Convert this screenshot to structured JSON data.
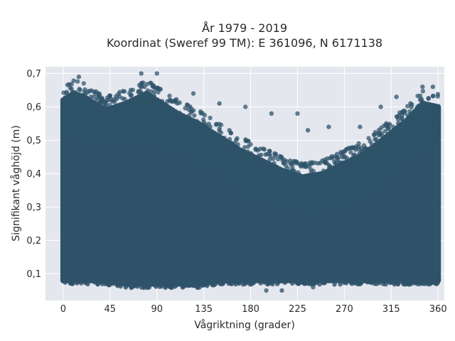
{
  "chart_data": {
    "type": "scatter",
    "title": "År 1979 - 2019",
    "subtitle": "Koordinat (Sweref 99 TM): E 361096, N 6171138",
    "xlabel": "Vågriktning (grader)",
    "ylabel": "Signifikant våghöjd (m)",
    "xlim": [
      -17,
      366
    ],
    "ylim": [
      0.02,
      0.72
    ],
    "x_ticks": [
      0,
      45,
      90,
      135,
      180,
      225,
      270,
      315,
      360
    ],
    "x_tick_labels": [
      "0",
      "45",
      "90",
      "135",
      "180",
      "225",
      "270",
      "315",
      "360"
    ],
    "y_ticks": [
      0.1,
      0.2,
      0.3,
      0.4,
      0.5,
      0.6,
      0.7
    ],
    "y_tick_labels": [
      "0,1",
      "0,2",
      "0,3",
      "0,4",
      "0,5",
      "0,6",
      "0,7"
    ],
    "grid": true,
    "marker_color": "#2e5369",
    "plot_bg": "#e5e7ef",
    "envelope": {
      "direction": [
        0,
        10,
        20,
        40,
        60,
        80,
        90,
        110,
        130,
        150,
        170,
        190,
        210,
        230,
        250,
        270,
        290,
        310,
        330,
        345,
        360
      ],
      "max_height": [
        0.66,
        0.68,
        0.67,
        0.63,
        0.65,
        0.68,
        0.66,
        0.62,
        0.59,
        0.55,
        0.51,
        0.48,
        0.45,
        0.43,
        0.44,
        0.47,
        0.5,
        0.55,
        0.6,
        0.65,
        0.64
      ],
      "min_height": [
        0.08,
        0.08,
        0.08,
        0.08,
        0.07,
        0.07,
        0.07,
        0.07,
        0.07,
        0.08,
        0.08,
        0.08,
        0.08,
        0.08,
        0.08,
        0.08,
        0.08,
        0.08,
        0.08,
        0.08,
        0.08
      ]
    },
    "outliers": [
      {
        "x": 75,
        "y": 0.7
      },
      {
        "x": 90,
        "y": 0.7
      },
      {
        "x": 15,
        "y": 0.69
      },
      {
        "x": 125,
        "y": 0.64
      },
      {
        "x": 150,
        "y": 0.61
      },
      {
        "x": 175,
        "y": 0.6
      },
      {
        "x": 200,
        "y": 0.58
      },
      {
        "x": 225,
        "y": 0.58
      },
      {
        "x": 235,
        "y": 0.53
      },
      {
        "x": 255,
        "y": 0.54
      },
      {
        "x": 285,
        "y": 0.54
      },
      {
        "x": 305,
        "y": 0.6
      },
      {
        "x": 320,
        "y": 0.63
      },
      {
        "x": 345,
        "y": 0.66
      },
      {
        "x": 355,
        "y": 0.66
      },
      {
        "x": 195,
        "y": 0.05
      },
      {
        "x": 210,
        "y": 0.05
      },
      {
        "x": 240,
        "y": 0.06
      }
    ]
  }
}
